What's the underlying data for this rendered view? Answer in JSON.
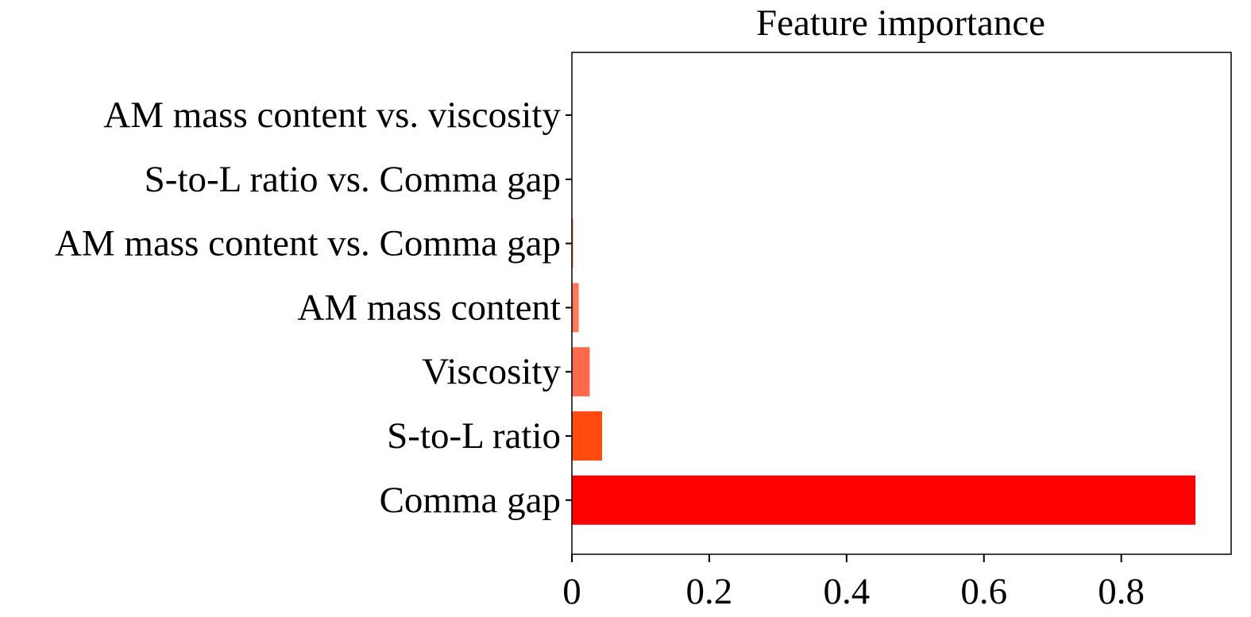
{
  "chart_data": {
    "type": "bar",
    "orientation": "horizontal",
    "title": "Feature importance",
    "xlabel": "",
    "ylabel": "",
    "categories": [
      "AM mass content vs. viscosity",
      "S-to-L ratio vs. Comma gap",
      "AM mass content vs. Comma gap",
      "AM mass content",
      "Viscosity",
      "S-to-L ratio",
      "Comma gap"
    ],
    "values": [
      0.0,
      0.0,
      0.002,
      0.01,
      0.026,
      0.044,
      0.908
    ],
    "bar_colors": [
      "#ffb7a3",
      "#ffa489",
      "#ff9070",
      "#ff7a5a",
      "#ff6a4c",
      "#ff4a10",
      "#ff0000"
    ],
    "xticks": [
      "0",
      "0.2",
      "0.4",
      "0.6",
      "0.8"
    ],
    "xtick_values": [
      0,
      0.2,
      0.4,
      0.6,
      0.8
    ],
    "xlim": [
      0,
      0.96
    ],
    "grid": false,
    "legend": "none"
  }
}
